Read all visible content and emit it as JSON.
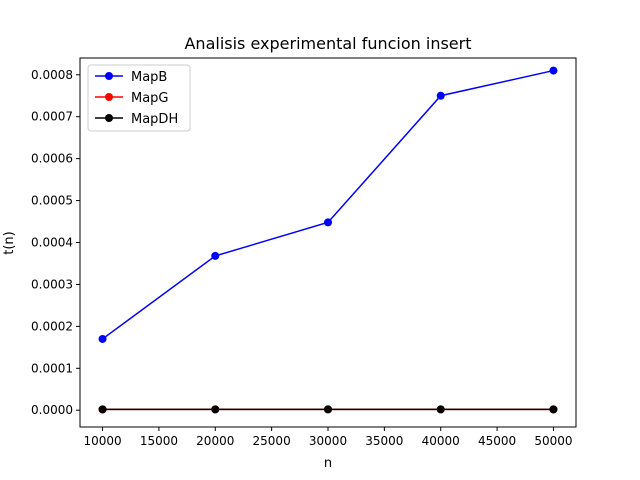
{
  "chart_data": {
    "type": "line",
    "title": "Analisis experimental funcion insert",
    "xlabel": "n",
    "ylabel": "t(n)",
    "x": [
      10000,
      20000,
      30000,
      40000,
      50000
    ],
    "xlim": [
      8000,
      52000
    ],
    "ylim": [
      -4e-05,
      0.00084
    ],
    "xticks": [
      10000,
      15000,
      20000,
      25000,
      30000,
      35000,
      40000,
      45000,
      50000
    ],
    "xtick_labels": [
      "10000",
      "15000",
      "20000",
      "25000",
      "30000",
      "35000",
      "40000",
      "45000",
      "50000"
    ],
    "yticks": [
      0,
      0.0001,
      0.0002,
      0.0003,
      0.0004,
      0.0005,
      0.0006,
      0.0007,
      0.0008
    ],
    "ytick_labels": [
      "0.0000",
      "0.0001",
      "0.0002",
      "0.0003",
      "0.0004",
      "0.0005",
      "0.0006",
      "0.0007",
      "0.0008"
    ],
    "grid": false,
    "legend_position": "top-left",
    "series": [
      {
        "name": "MapB",
        "color": "#0000ff",
        "marker": "circle",
        "values": [
          0.00017,
          0.000368,
          0.000448,
          0.00075,
          0.00081
        ]
      },
      {
        "name": "MapG",
        "color": "#ff0000",
        "marker": "circle",
        "values": [
          2e-06,
          2e-06,
          2e-06,
          2e-06,
          2e-06
        ]
      },
      {
        "name": "MapDH",
        "color": "#000000",
        "marker": "circle",
        "values": [
          2e-06,
          2e-06,
          2e-06,
          2e-06,
          2e-06
        ]
      }
    ]
  }
}
